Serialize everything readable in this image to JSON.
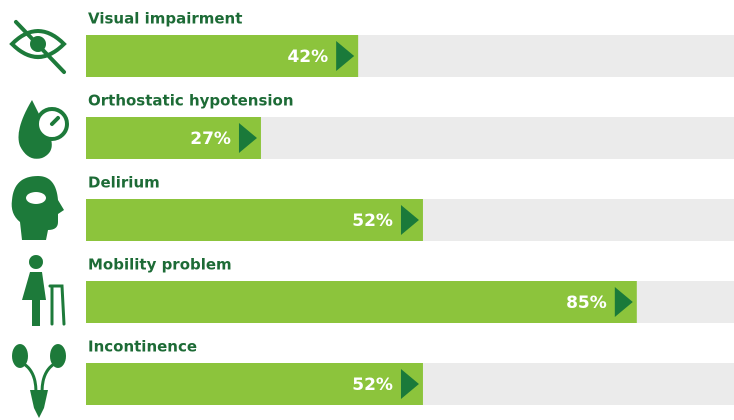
{
  "chart_data": {
    "type": "bar",
    "orientation": "horizontal",
    "categories": [
      "Visual impairment",
      "Orthostatic hypotension",
      "Delirium",
      "Mobility problem",
      "Incontinence"
    ],
    "values": [
      42,
      27,
      52,
      85,
      52
    ],
    "value_labels": [
      "42%",
      "27%",
      "52%",
      "85%",
      "52%"
    ],
    "xlim": [
      0,
      100
    ],
    "color": "#8cc43c",
    "track_color": "#ebebeb",
    "arrow_color": "#1a7a3a"
  }
}
